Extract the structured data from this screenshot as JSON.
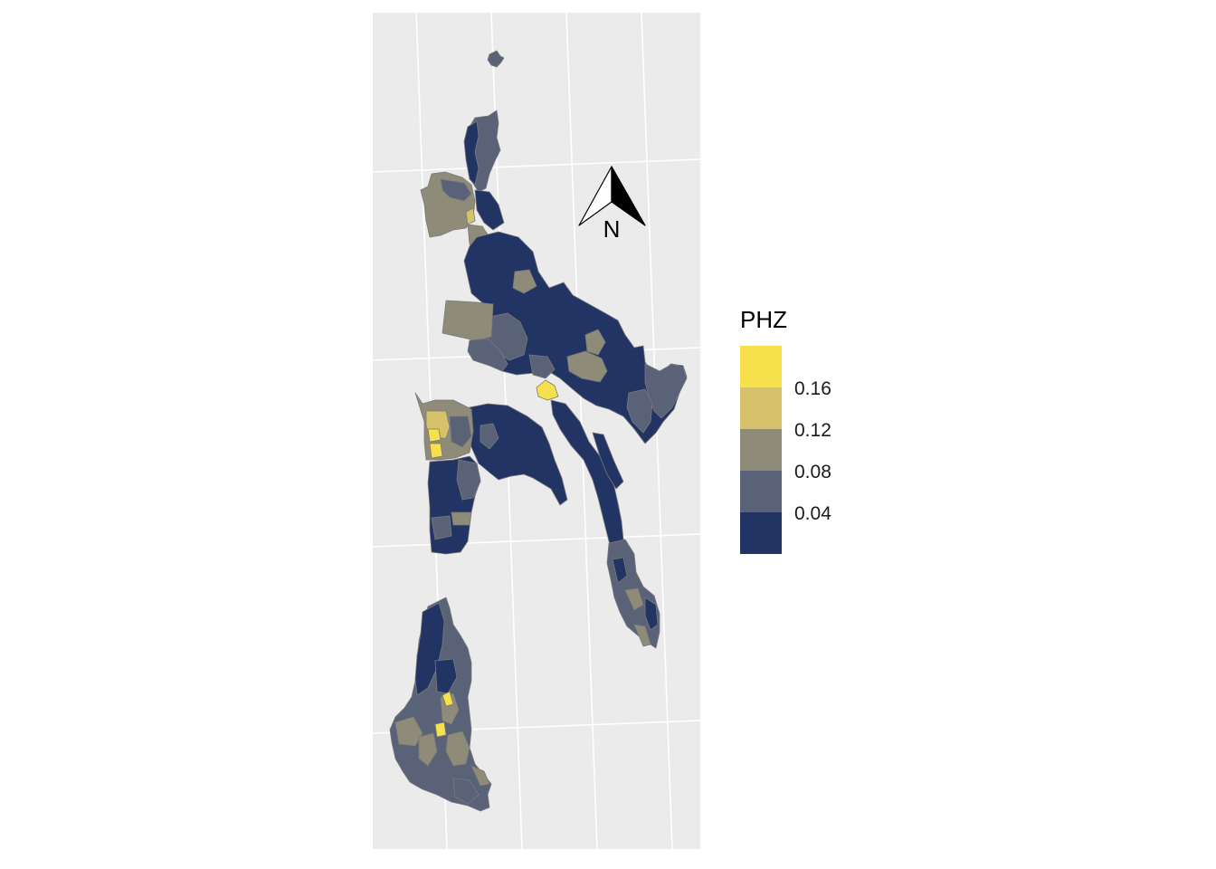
{
  "map": {
    "north_arrow_label": "N",
    "panel_background": "#ebebeb",
    "grid_color": "#ffffff",
    "boundary_color": "#7a7a7a"
  },
  "legend": {
    "title": "PHZ",
    "breaks": [
      "0.16",
      "0.12",
      "0.08",
      "0.04"
    ],
    "colors": [
      "#f6e04b",
      "#d5c26b",
      "#8e8b78",
      "#5a6277",
      "#213463"
    ],
    "color_names": [
      "yellow",
      "khaki",
      "taupe",
      "slate",
      "navy"
    ]
  }
}
